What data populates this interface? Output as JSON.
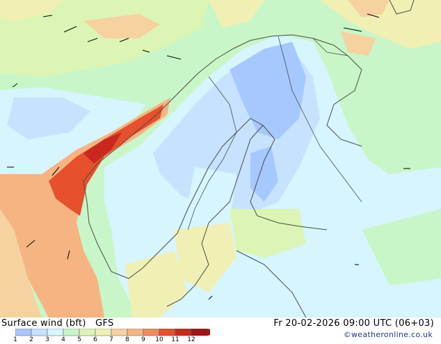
{
  "title": "Surface wind (bft)",
  "model": "GFS",
  "datetime": "Fr 20-02-2026 09:00 UTC (06+03)",
  "credit": "©weatheronline.co.uk",
  "legend": {
    "values": [
      "1",
      "2",
      "3",
      "4",
      "5",
      "6",
      "7",
      "8",
      "9",
      "10",
      "11",
      "12"
    ],
    "colors": [
      "#a6c8ff",
      "#c6e2ff",
      "#d6f5ff",
      "#c8f6c8",
      "#dcf5b4",
      "#f0f0b4",
      "#f5d2a0",
      "#f5b482",
      "#f08c5a",
      "#e6502d",
      "#c8281e",
      "#a01414"
    ]
  },
  "colors": {
    "calm": "#a6c8ff",
    "light": "#c6e2ff",
    "breeze": "#d6f5ff",
    "green": "#c8f6c8",
    "lime": "#dcf5b4",
    "yellow": "#f0f0b4",
    "peach": "#f5d2a0",
    "orange": "#f5b482",
    "strong": "#f08c5a",
    "gale": "#e6502d",
    "storm": "#c8281e",
    "border": "#4a4a4a"
  }
}
